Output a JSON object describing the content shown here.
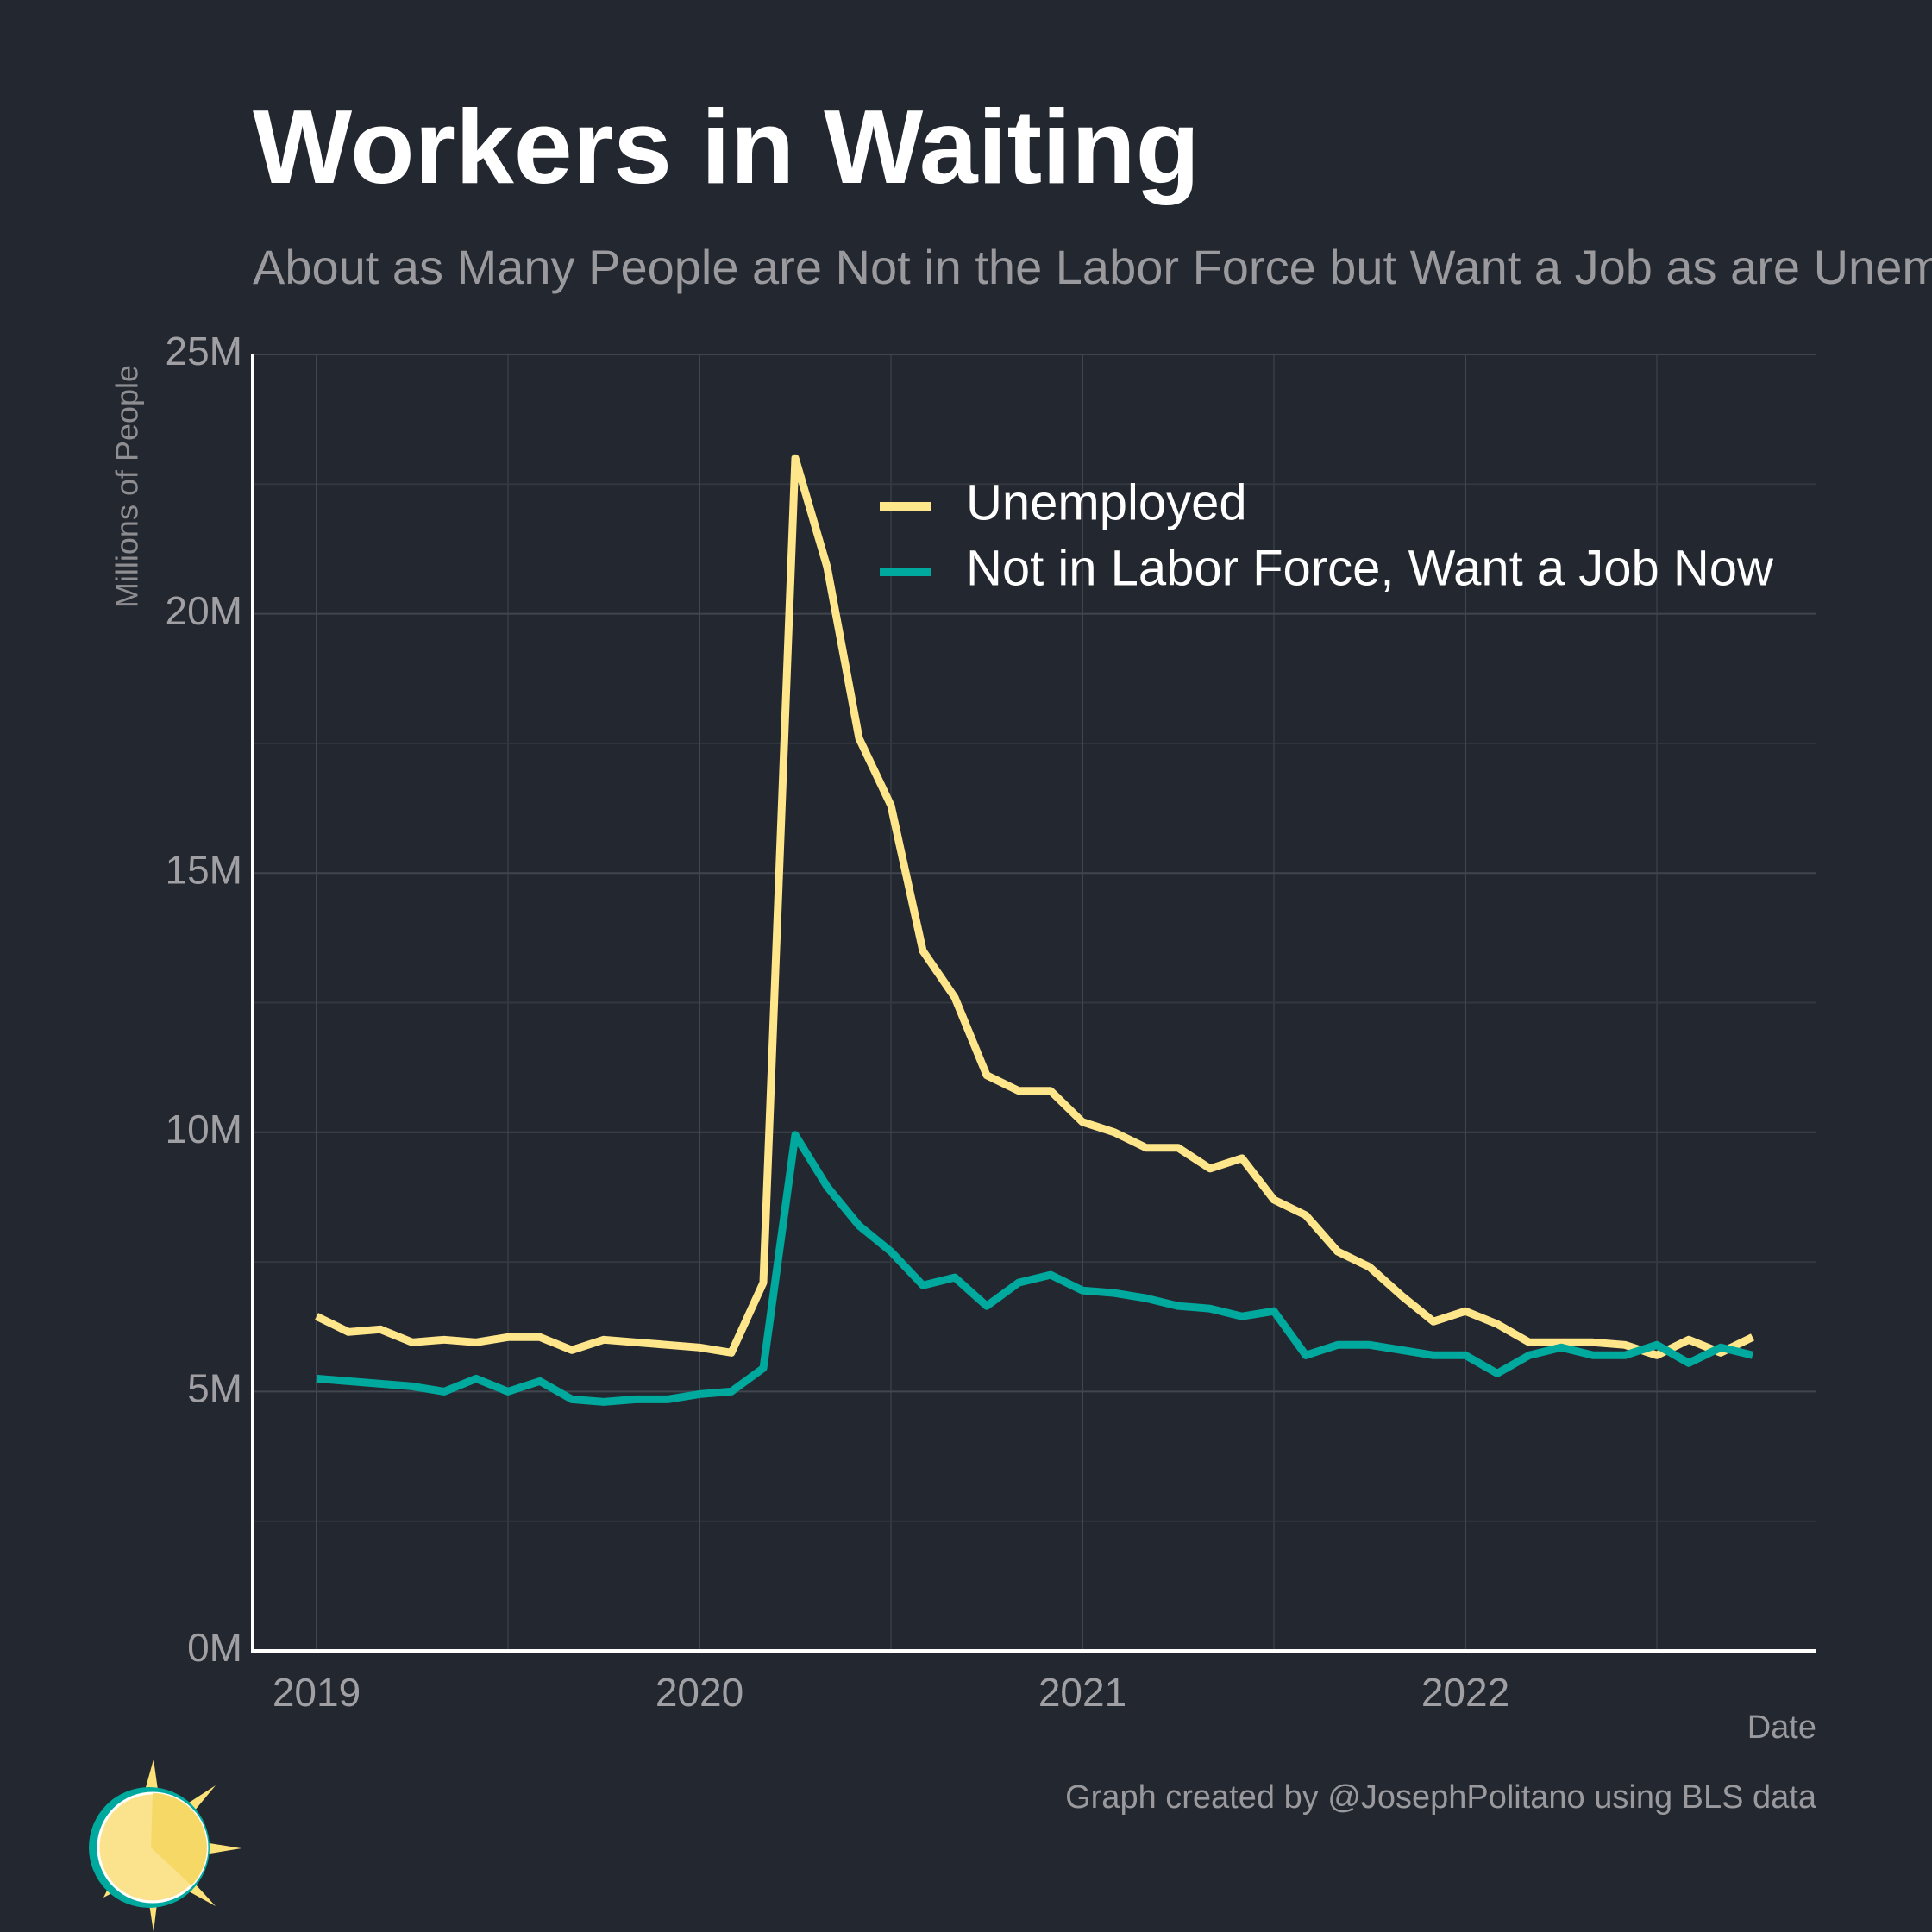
{
  "chart_data": {
    "type": "line",
    "title": "Workers in Waiting",
    "subtitle": "About as Many People are Not in the Labor Force but Want a Job as are Unemployed",
    "y_label": "Millions of People",
    "x_label": "Date",
    "caption": "Graph created by @JosephPolitano using BLS data",
    "x": [
      "2019-01",
      "2019-02",
      "2019-03",
      "2019-04",
      "2019-05",
      "2019-06",
      "2019-07",
      "2019-08",
      "2019-09",
      "2019-10",
      "2019-11",
      "2019-12",
      "2020-01",
      "2020-02",
      "2020-03",
      "2020-04",
      "2020-05",
      "2020-06",
      "2020-07",
      "2020-08",
      "2020-09",
      "2020-10",
      "2020-11",
      "2020-12",
      "2021-01",
      "2021-02",
      "2021-03",
      "2021-04",
      "2021-05",
      "2021-06",
      "2021-07",
      "2021-08",
      "2021-09",
      "2021-10",
      "2021-11",
      "2021-12",
      "2022-01",
      "2022-02",
      "2022-03",
      "2022-04",
      "2022-05",
      "2022-06",
      "2022-07",
      "2022-08",
      "2022-09",
      "2022-10"
    ],
    "series": [
      {
        "name": "Unemployed",
        "color": "#ffe68a",
        "values": [
          6.45,
          6.15,
          6.2,
          5.95,
          6.0,
          5.95,
          6.05,
          6.05,
          5.8,
          6.0,
          5.95,
          5.9,
          5.85,
          5.75,
          7.1,
          23.0,
          20.9,
          17.6,
          16.3,
          13.5,
          12.6,
          11.1,
          10.8,
          10.8,
          10.2,
          10.0,
          9.7,
          9.7,
          9.3,
          9.5,
          8.7,
          8.4,
          7.7,
          7.4,
          6.85,
          6.35,
          6.55,
          6.3,
          5.95,
          5.95,
          5.95,
          5.9,
          5.7,
          6.0,
          5.75,
          6.05
        ]
      },
      {
        "name": "Not in Labor Force, Want a Job Now",
        "color": "#00a99d",
        "values": [
          5.25,
          5.2,
          5.15,
          5.1,
          5.0,
          5.25,
          5.0,
          5.2,
          4.85,
          4.8,
          4.85,
          4.85,
          4.95,
          5.0,
          5.45,
          9.95,
          8.95,
          8.2,
          7.7,
          7.05,
          7.2,
          6.65,
          7.1,
          7.25,
          6.95,
          6.9,
          6.8,
          6.65,
          6.6,
          6.45,
          6.55,
          5.7,
          5.9,
          5.9,
          5.8,
          5.7,
          5.7,
          5.35,
          5.7,
          5.85,
          5.7,
          5.7,
          5.9,
          5.55,
          5.85,
          5.7
        ]
      }
    ],
    "xlim": [
      "2018-11",
      "2022-12"
    ],
    "xticks": [
      {
        "value": "2019-01",
        "label": "2019"
      },
      {
        "value": "2020-01",
        "label": "2020"
      },
      {
        "value": "2021-01",
        "label": "2021"
      },
      {
        "value": "2022-01",
        "label": "2022"
      }
    ],
    "ylim": [
      0,
      25
    ],
    "yticks": [
      {
        "value": 0,
        "label": "0M"
      },
      {
        "value": 5,
        "label": "5M"
      },
      {
        "value": 10,
        "label": "10M"
      },
      {
        "value": 15,
        "label": "15M"
      },
      {
        "value": 20,
        "label": "20M"
      },
      {
        "value": 25,
        "label": "25M"
      }
    ],
    "grid": true,
    "legend": "top-right"
  }
}
